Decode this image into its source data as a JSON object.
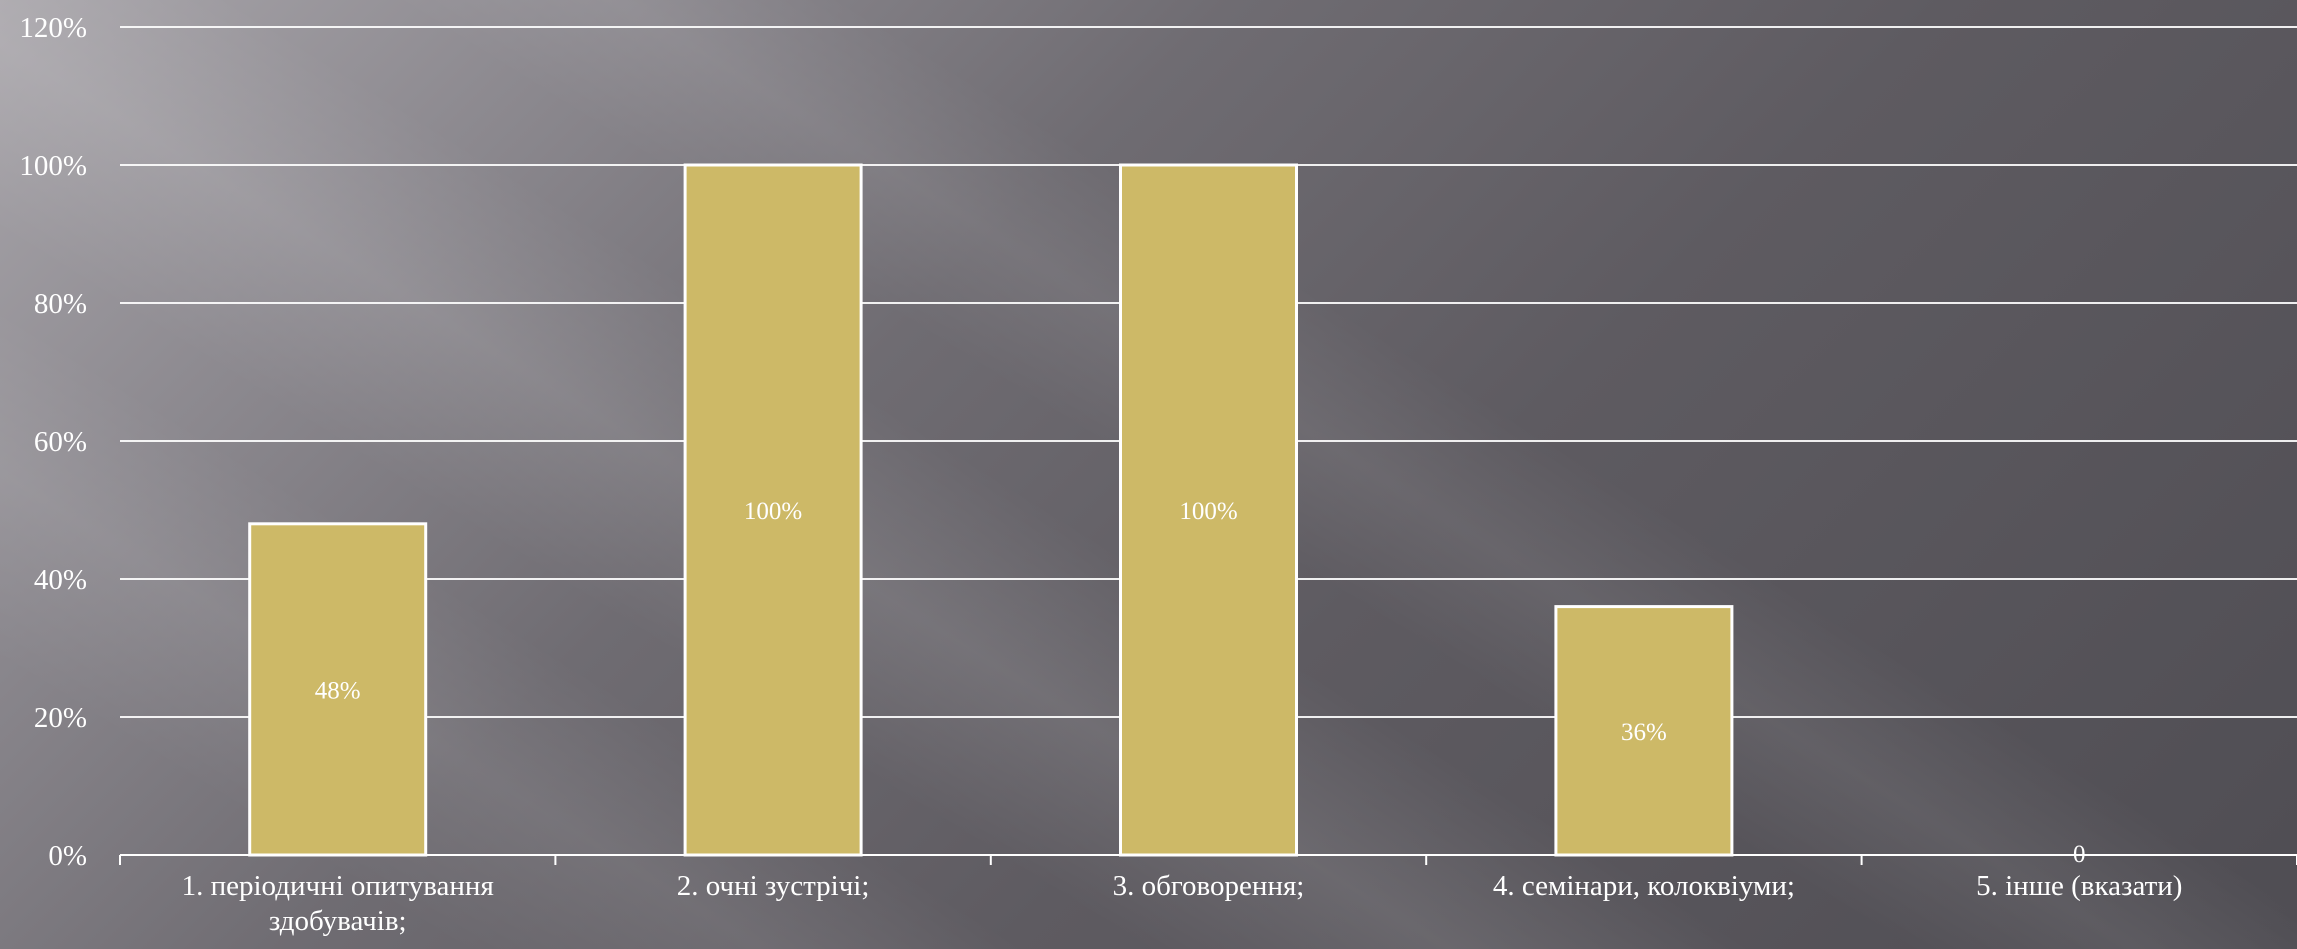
{
  "chart_data": {
    "type": "bar",
    "categories": [
      [
        "1. періодичні опитування",
        "здобувачів;"
      ],
      [
        "2. очні зустрічі;"
      ],
      [
        "3. обговорення;"
      ],
      [
        "4. семінари, колоквіуми;"
      ],
      [
        "5. інше (вказати)"
      ]
    ],
    "values": [
      0.48,
      1.0,
      1.0,
      0.36,
      0
    ],
    "data_labels": [
      "48%",
      "100%",
      "100%",
      "36%",
      "0"
    ],
    "y_ticks": [
      "0%",
      "20%",
      "40%",
      "60%",
      "80%",
      "100%",
      "120%"
    ],
    "ylim": [
      0,
      1.2
    ],
    "grid": true,
    "colors": {
      "bar_fill": "#cdb967",
      "bar_stroke": "#ffffff",
      "grid": "#ffffff",
      "text": "#ffffff"
    }
  }
}
